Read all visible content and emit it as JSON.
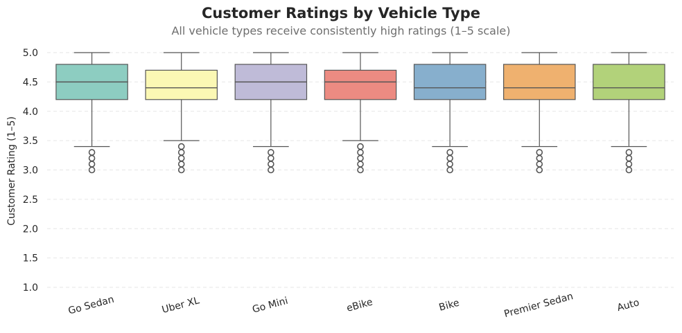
{
  "chart_data": {
    "type": "box",
    "title": "Customer Ratings by Vehicle Type",
    "subtitle": "All vehicle types receive consistently high ratings (1–5 scale)",
    "xlabel": "",
    "ylabel": "Customer Rating (1–5)",
    "ylim": [
      1.0,
      5.0
    ],
    "yticks": [
      "1.0",
      "1.5",
      "2.0",
      "2.5",
      "3.0",
      "3.5",
      "4.0",
      "4.5",
      "5.0"
    ],
    "grid": true,
    "legend": "none",
    "categories": [
      "Go Sedan",
      "Uber XL",
      "Go Mini",
      "eBike",
      "Bike",
      "Premier Sedan",
      "Auto"
    ],
    "boxes": [
      {
        "category": "Go Sedan",
        "whisker_low": 3.4,
        "q1": 4.2,
        "median": 4.5,
        "q3": 4.8,
        "whisker_high": 5.0,
        "outliers": [
          3.0,
          3.1,
          3.2,
          3.3
        ],
        "color": "#8dcdc1"
      },
      {
        "category": "Uber XL",
        "whisker_low": 3.5,
        "q1": 4.2,
        "median": 4.4,
        "q3": 4.7,
        "whisker_high": 5.0,
        "outliers": [
          3.0,
          3.1,
          3.2,
          3.3,
          3.4
        ],
        "color": "#fbf8b4"
      },
      {
        "category": "Go Mini",
        "whisker_low": 3.4,
        "q1": 4.2,
        "median": 4.5,
        "q3": 4.8,
        "whisker_high": 5.0,
        "outliers": [
          3.0,
          3.1,
          3.2,
          3.3
        ],
        "color": "#bfbbd8"
      },
      {
        "category": "eBike",
        "whisker_low": 3.5,
        "q1": 4.2,
        "median": 4.5,
        "q3": 4.7,
        "whisker_high": 5.0,
        "outliers": [
          3.0,
          3.1,
          3.2,
          3.3,
          3.4
        ],
        "color": "#ec8b82"
      },
      {
        "category": "Bike",
        "whisker_low": 3.4,
        "q1": 4.2,
        "median": 4.4,
        "q3": 4.8,
        "whisker_high": 5.0,
        "outliers": [
          3.0,
          3.1,
          3.2,
          3.3
        ],
        "color": "#87afcd"
      },
      {
        "category": "Premier Sedan",
        "whisker_low": 3.4,
        "q1": 4.2,
        "median": 4.4,
        "q3": 4.8,
        "whisker_high": 5.0,
        "outliers": [
          3.0,
          3.1,
          3.2,
          3.3
        ],
        "color": "#efb16f"
      },
      {
        "category": "Auto",
        "whisker_low": 3.4,
        "q1": 4.2,
        "median": 4.4,
        "q3": 4.8,
        "whisker_high": 5.0,
        "outliers": [
          3.0,
          3.1,
          3.2,
          3.3
        ],
        "color": "#b2d27a"
      }
    ]
  }
}
